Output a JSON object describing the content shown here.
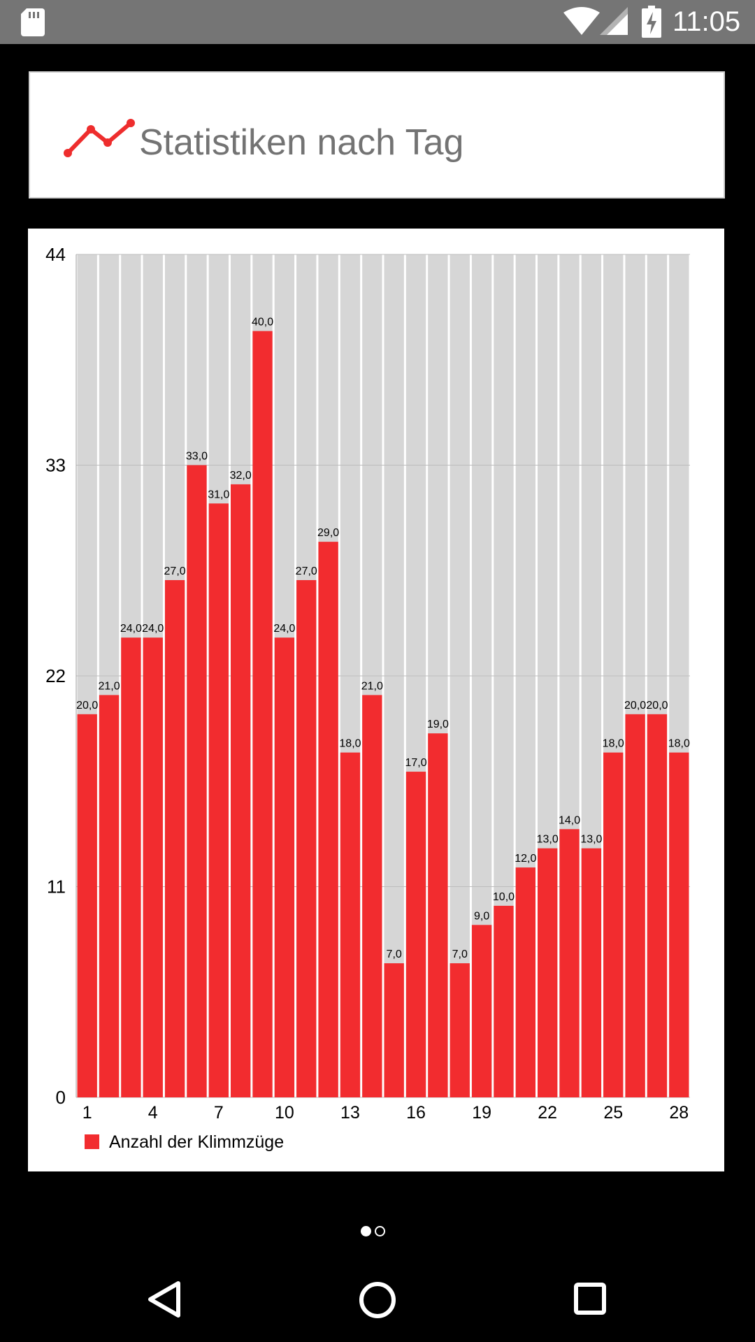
{
  "status_bar": {
    "time": "11:05",
    "icons": [
      "sd-card-icon",
      "wifi-icon",
      "cell-signal-icon",
      "battery-charging-icon"
    ]
  },
  "header": {
    "icon": "line-chart-icon",
    "title": "Statistiken nach Tag"
  },
  "chart_data": {
    "type": "bar",
    "title": "",
    "xlabel": "",
    "ylabel": "",
    "categories": [
      "1",
      "2",
      "3",
      "4",
      "5",
      "6",
      "7",
      "8",
      "9",
      "10",
      "11",
      "12",
      "13",
      "14",
      "15",
      "16",
      "17",
      "18",
      "19",
      "20",
      "21",
      "22",
      "23",
      "24",
      "25",
      "26",
      "27",
      "28"
    ],
    "x_tick_labels": [
      "1",
      "4",
      "7",
      "10",
      "13",
      "16",
      "19",
      "22",
      "25",
      "28"
    ],
    "y_tick_labels": [
      "0",
      "11",
      "22",
      "33",
      "44"
    ],
    "ylim": [
      0,
      44
    ],
    "series": [
      {
        "name": "Anzahl der Klimmzüge",
        "values": [
          20,
          21,
          24,
          24,
          27,
          33,
          31,
          32,
          40,
          24,
          27,
          29,
          18,
          21,
          7,
          17,
          19,
          7,
          9,
          10,
          12,
          13,
          14,
          13,
          18,
          20,
          20,
          18
        ],
        "labels": [
          "20,0",
          "21,0",
          "24,0",
          "24,0",
          "27,0",
          "33,0",
          "31,0",
          "32,0",
          "40,0",
          "24,0",
          "27,0",
          "29,0",
          "18,0",
          "21,0",
          "7,0",
          "17,0",
          "19,0",
          "7,0",
          "9,0",
          "10,0",
          "12,0",
          "13,0",
          "14,0",
          "13,0",
          "18,0",
          "20,0",
          "20,0",
          "18,0"
        ],
        "color": "#f22c2f"
      }
    ],
    "background_bar_color": "#d6d6d6",
    "grid": true,
    "legend_position": "bottom-left"
  },
  "pager": {
    "pages": 2,
    "current": 1
  },
  "nav_bar": {
    "icons": [
      "back-icon",
      "home-icon",
      "recents-icon"
    ]
  }
}
